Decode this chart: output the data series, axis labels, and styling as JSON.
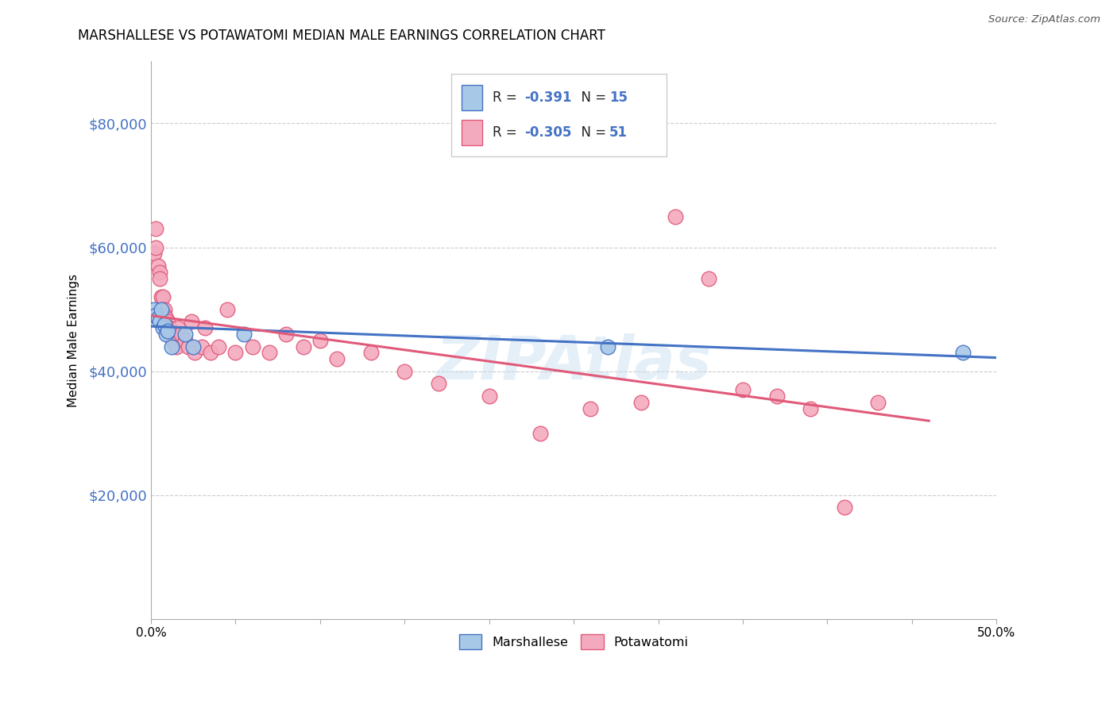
{
  "title": "MARSHALLESE VS POTAWATOMI MEDIAN MALE EARNINGS CORRELATION CHART",
  "source": "Source: ZipAtlas.com",
  "ylabel": "Median Male Earnings",
  "watermark": "ZIPAtlas",
  "legend_label1": "Marshallese",
  "legend_label2": "Potawatomi",
  "blue_color": "#A8C8E8",
  "pink_color": "#F4AABE",
  "blue_line_color": "#4472C4",
  "pink_line_color": "#E05A7A",
  "ytick_color": "#4472C4",
  "ylim": [
    0,
    90000
  ],
  "xlim": [
    0.0,
    0.5
  ],
  "yticks": [
    20000,
    40000,
    60000,
    80000
  ],
  "ytick_labels": [
    "$20,000",
    "$40,000",
    "$60,000",
    "$80,000"
  ],
  "grid_color": "#CCCCCC",
  "background_color": "#FFFFFF",
  "marshallese_x": [
    0.002,
    0.003,
    0.004,
    0.005,
    0.006,
    0.007,
    0.008,
    0.009,
    0.01,
    0.012,
    0.02,
    0.025,
    0.055,
    0.27,
    0.48
  ],
  "marshallese_y": [
    50000,
    49000,
    48500,
    48000,
    50000,
    47000,
    47500,
    46000,
    46500,
    44000,
    46000,
    44000,
    46000,
    44000,
    43000
  ],
  "potawatomi_x": [
    0.002,
    0.003,
    0.003,
    0.004,
    0.005,
    0.005,
    0.006,
    0.007,
    0.008,
    0.008,
    0.009,
    0.01,
    0.01,
    0.011,
    0.012,
    0.012,
    0.013,
    0.014,
    0.015,
    0.016,
    0.018,
    0.02,
    0.022,
    0.024,
    0.026,
    0.03,
    0.032,
    0.035,
    0.04,
    0.045,
    0.05,
    0.06,
    0.07,
    0.08,
    0.09,
    0.1,
    0.11,
    0.13,
    0.15,
    0.17,
    0.2,
    0.23,
    0.26,
    0.29,
    0.31,
    0.33,
    0.35,
    0.37,
    0.39,
    0.41,
    0.43
  ],
  "potawatomi_y": [
    59000,
    63000,
    60000,
    57000,
    56000,
    55000,
    52000,
    52000,
    50000,
    49000,
    48500,
    48000,
    46500,
    47000,
    46000,
    45500,
    45000,
    44500,
    44000,
    47000,
    46000,
    45000,
    44000,
    48000,
    43000,
    44000,
    47000,
    43000,
    44000,
    50000,
    43000,
    44000,
    43000,
    46000,
    44000,
    45000,
    42000,
    43000,
    40000,
    38000,
    36000,
    30000,
    34000,
    35000,
    65000,
    55000,
    37000,
    36000,
    34000,
    18000,
    35000
  ]
}
